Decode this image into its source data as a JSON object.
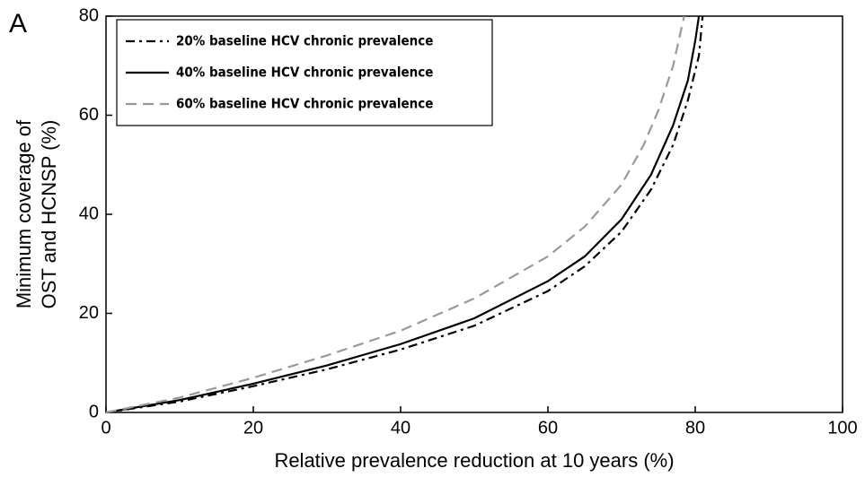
{
  "chart_data": {
    "type": "line",
    "panel_label": "A",
    "x_label": "Relative prevalence reduction at 10 years (%)",
    "y_label": [
      "Minimum coverage of",
      "OST and HCNSP (%)"
    ],
    "xlim": [
      0,
      100
    ],
    "xticks": [
      0,
      20,
      40,
      60,
      80,
      100
    ],
    "ylim": [
      0,
      80
    ],
    "yticks": [
      0,
      20,
      40,
      60,
      80
    ],
    "legend": "upper left",
    "series": [
      {
        "name": "20% baseline HCV chronic prevalence",
        "color": "#000000",
        "dash": "dashdot",
        "x": [
          0,
          10,
          20,
          30,
          40,
          50,
          60,
          65,
          70,
          74,
          77,
          79,
          80.5,
          81
        ],
        "values": [
          0,
          2.2,
          5.3,
          8.7,
          12.7,
          17.5,
          24.5,
          29.5,
          36.5,
          45,
          54,
          63,
          72,
          80
        ]
      },
      {
        "name": "40% baseline HCV chronic prevalence",
        "color": "#000000",
        "dash": "solid",
        "x": [
          0,
          10,
          20,
          30,
          40,
          50,
          60,
          65,
          70,
          74,
          77,
          79,
          80,
          80.5
        ],
        "values": [
          0,
          2.5,
          5.8,
          9.5,
          13.8,
          19,
          26.5,
          31.5,
          39,
          48,
          58,
          67,
          75,
          80
        ]
      },
      {
        "name": "60% baseline HCV chronic prevalence",
        "color": "#999999",
        "dash": "dashed",
        "x": [
          0,
          10,
          20,
          30,
          40,
          50,
          60,
          65,
          70,
          73,
          75,
          77,
          78.5
        ],
        "values": [
          0,
          3,
          7,
          11.5,
          16.5,
          23,
          31.5,
          37.5,
          46,
          54,
          61,
          70,
          80
        ]
      }
    ]
  }
}
